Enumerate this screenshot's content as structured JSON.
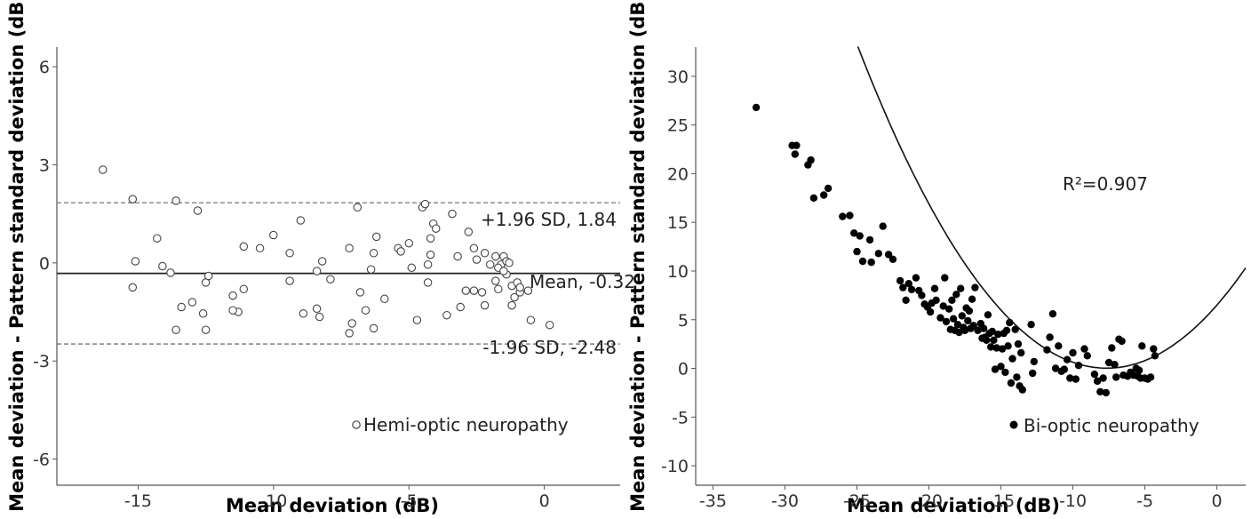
{
  "chart_data": [
    {
      "type": "scatter",
      "title": "",
      "xlabel": "Mean deviation (dB)",
      "ylabel": "- Mean deviation - Pattern standard deviation (dB)",
      "xlim": [
        -18,
        2.8
      ],
      "ylim": [
        -6.8,
        6.6
      ],
      "xticks": [
        -15,
        -10,
        -5,
        0
      ],
      "xtick_labels": [
        "-15",
        "-10",
        "-5",
        "0"
      ],
      "yticks": [
        6,
        3,
        0,
        -3,
        -6
      ],
      "ytick_labels": [
        "6",
        "3",
        "0",
        "-3",
        "-6"
      ],
      "grid": false,
      "legend": "Hemi-optic neuropathy",
      "legend_position": "bottom-right",
      "marker": "open-circle",
      "lines": [
        {
          "kind": "mean",
          "y": -0.32,
          "style": "solid",
          "label": "Mean, -0.32"
        },
        {
          "kind": "upper",
          "y": 1.84,
          "style": "dashed",
          "label": "+1.96 SD, 1.84"
        },
        {
          "kind": "lower",
          "y": -2.48,
          "style": "dashed",
          "label": "-1.96 SD, -2.48"
        }
      ],
      "points": [
        [
          -16.3,
          2.85
        ],
        [
          -15.2,
          1.95
        ],
        [
          -15.1,
          0.05
        ],
        [
          -15.2,
          -0.75
        ],
        [
          -14.3,
          0.75
        ],
        [
          -14.1,
          -0.1
        ],
        [
          -13.8,
          -0.3
        ],
        [
          -13.6,
          1.9
        ],
        [
          -13.6,
          -2.05
        ],
        [
          -13.4,
          -1.35
        ],
        [
          -13.0,
          -1.2
        ],
        [
          -12.8,
          1.6
        ],
        [
          -12.6,
          -1.55
        ],
        [
          -12.5,
          -0.6
        ],
        [
          -12.4,
          -0.4
        ],
        [
          -12.5,
          -2.05
        ],
        [
          -11.5,
          -1.0
        ],
        [
          -11.3,
          -1.5
        ],
        [
          -11.1,
          0.5
        ],
        [
          -11.1,
          -0.8
        ],
        [
          -11.5,
          -1.45
        ],
        [
          -10.5,
          0.45
        ],
        [
          -10.0,
          0.85
        ],
        [
          -9.4,
          0.3
        ],
        [
          -9.4,
          -0.55
        ],
        [
          -9.0,
          1.3
        ],
        [
          -8.9,
          -1.55
        ],
        [
          -8.4,
          -1.4
        ],
        [
          -8.4,
          -0.25
        ],
        [
          -8.2,
          0.05
        ],
        [
          -8.3,
          -1.65
        ],
        [
          -7.9,
          -0.5
        ],
        [
          -7.2,
          0.45
        ],
        [
          -7.1,
          -1.85
        ],
        [
          -7.2,
          -2.15
        ],
        [
          -6.9,
          1.7
        ],
        [
          -6.8,
          -0.9
        ],
        [
          -6.6,
          -1.45
        ],
        [
          -6.4,
          -0.2
        ],
        [
          -6.3,
          0.3
        ],
        [
          -6.2,
          0.8
        ],
        [
          -6.3,
          -2.0
        ],
        [
          -5.9,
          -1.1
        ],
        [
          -5.4,
          0.45
        ],
        [
          -5.3,
          0.35
        ],
        [
          -5.0,
          0.6
        ],
        [
          -4.9,
          -0.15
        ],
        [
          -4.7,
          -1.75
        ],
        [
          -4.5,
          1.7
        ],
        [
          -4.3,
          -0.6
        ],
        [
          -4.3,
          -0.05
        ],
        [
          -4.2,
          0.25
        ],
        [
          -4.2,
          0.75
        ],
        [
          -4.1,
          1.2
        ],
        [
          -4.0,
          1.05
        ],
        [
          -3.6,
          -1.6
        ],
        [
          -3.4,
          1.5
        ],
        [
          -3.2,
          0.2
        ],
        [
          -3.1,
          -1.35
        ],
        [
          -2.9,
          -0.85
        ],
        [
          -2.8,
          0.95
        ],
        [
          -2.6,
          0.45
        ],
        [
          -2.5,
          0.1
        ],
        [
          -2.3,
          -0.9
        ],
        [
          -2.2,
          0.3
        ],
        [
          -2.2,
          -1.3
        ],
        [
          -2.0,
          -0.05
        ],
        [
          -1.8,
          0.2
        ],
        [
          -1.8,
          -0.55
        ],
        [
          -1.7,
          -0.8
        ],
        [
          -1.6,
          -0.05
        ],
        [
          -1.5,
          0.2
        ],
        [
          -1.4,
          0.05
        ],
        [
          -1.4,
          -0.35
        ],
        [
          -1.3,
          0.0
        ],
        [
          -1.2,
          -1.3
        ],
        [
          -1.2,
          -0.7
        ],
        [
          -1.1,
          -1.05
        ],
        [
          -1.0,
          -0.6
        ],
        [
          -0.9,
          -0.9
        ],
        [
          -1.7,
          -0.15
        ],
        [
          -1.5,
          -0.25
        ],
        [
          -0.5,
          -1.75
        ],
        [
          0.2,
          -1.9
        ],
        [
          -0.6,
          -0.85
        ],
        [
          -0.9,
          -0.75
        ],
        [
          -2.6,
          -0.85
        ],
        [
          -4.4,
          1.8
        ]
      ]
    },
    {
      "type": "scatter",
      "title": "",
      "xlabel": "Mean deviation (dB)",
      "ylabel": "- Mean deviation - Pattern standard deviation (dB)",
      "xlim": [
        -36.2,
        2
      ],
      "ylim": [
        -12,
        33
      ],
      "xticks": [
        -35,
        -30,
        -25,
        -20,
        -15,
        -10,
        -5,
        0
      ],
      "xtick_labels": [
        "-35",
        "-30",
        "-25",
        "-20",
        "-15",
        "-10",
        "-5",
        "0"
      ],
      "yticks": [
        30,
        25,
        20,
        15,
        10,
        5,
        0,
        -5,
        -10
      ],
      "ytick_labels": [
        "30",
        "25",
        "20",
        "15",
        "10",
        "5",
        "0",
        "-5",
        "-10"
      ],
      "grid": false,
      "legend": "Bi-optic neuropathy",
      "legend_position": "bottom-right",
      "marker": "filled-circle",
      "annotation": "R²=0.907",
      "fit": {
        "type": "quadratic",
        "coefficients": [
          0.1106,
          1.6925,
          6.5
        ]
      },
      "points": [
        [
          -32.0,
          26.8
        ],
        [
          -29.5,
          22.9
        ],
        [
          -29.3,
          22.0
        ],
        [
          -29.2,
          22.9
        ],
        [
          -28.4,
          20.9
        ],
        [
          -28.2,
          21.4
        ],
        [
          -28.0,
          17.5
        ],
        [
          -27.3,
          17.8
        ],
        [
          -27.0,
          18.5
        ],
        [
          -26.0,
          15.6
        ],
        [
          -25.5,
          15.7
        ],
        [
          -25.2,
          13.9
        ],
        [
          -25.0,
          12.0
        ],
        [
          -24.8,
          13.6
        ],
        [
          -24.6,
          11.0
        ],
        [
          -24.1,
          13.2
        ],
        [
          -24.0,
          10.9
        ],
        [
          -23.5,
          11.8
        ],
        [
          -23.2,
          14.6
        ],
        [
          -22.8,
          11.7
        ],
        [
          -22.5,
          11.2
        ],
        [
          -22.0,
          9.0
        ],
        [
          -21.8,
          8.3
        ],
        [
          -21.6,
          7.0
        ],
        [
          -21.4,
          8.7
        ],
        [
          -21.2,
          8.1
        ],
        [
          -20.9,
          9.3
        ],
        [
          -20.7,
          8.0
        ],
        [
          -20.5,
          7.5
        ],
        [
          -20.3,
          6.6
        ],
        [
          -20.1,
          6.3
        ],
        [
          -19.9,
          5.8
        ],
        [
          -19.8,
          6.7
        ],
        [
          -19.6,
          8.2
        ],
        [
          -19.5,
          7.0
        ],
        [
          -19.2,
          5.2
        ],
        [
          -19.0,
          6.4
        ],
        [
          -18.9,
          9.3
        ],
        [
          -18.8,
          4.8
        ],
        [
          -18.6,
          6.1
        ],
        [
          -18.5,
          4.0
        ],
        [
          -18.4,
          7.0
        ],
        [
          -18.3,
          5.1
        ],
        [
          -18.2,
          3.9
        ],
        [
          -18.1,
          7.6
        ],
        [
          -18.0,
          4.5
        ],
        [
          -17.9,
          3.7
        ],
        [
          -17.8,
          8.2
        ],
        [
          -17.7,
          5.4
        ],
        [
          -17.6,
          4.2
        ],
        [
          -17.5,
          3.9
        ],
        [
          -17.4,
          6.2
        ],
        [
          -17.3,
          4.9
        ],
        [
          -17.2,
          5.9
        ],
        [
          -17.1,
          4.1
        ],
        [
          -17.0,
          7.1
        ],
        [
          -16.9,
          4.4
        ],
        [
          -16.8,
          8.3
        ],
        [
          -16.6,
          3.9
        ],
        [
          -16.4,
          4.6
        ],
        [
          -16.3,
          3.1
        ],
        [
          -16.2,
          4.1
        ],
        [
          -16.0,
          2.9
        ],
        [
          -15.9,
          5.5
        ],
        [
          -15.8,
          3.6
        ],
        [
          -15.7,
          2.2
        ],
        [
          -15.6,
          3.8
        ],
        [
          -15.5,
          2.9
        ],
        [
          -15.4,
          -0.1
        ],
        [
          -15.3,
          2.1
        ],
        [
          -15.2,
          3.5
        ],
        [
          -15.0,
          0.2
        ],
        [
          -14.9,
          2.0
        ],
        [
          -14.8,
          3.6
        ],
        [
          -14.7,
          -0.4
        ],
        [
          -14.6,
          3.9
        ],
        [
          -14.5,
          2.3
        ],
        [
          -14.4,
          4.7
        ],
        [
          -14.3,
          -1.5
        ],
        [
          -14.2,
          1.0
        ],
        [
          -14.0,
          4.0
        ],
        [
          -13.9,
          -0.9
        ],
        [
          -13.8,
          2.5
        ],
        [
          -13.7,
          -1.8
        ],
        [
          -13.6,
          1.6
        ],
        [
          -13.5,
          -2.2
        ],
        [
          -12.9,
          4.5
        ],
        [
          -12.8,
          -0.5
        ],
        [
          -12.7,
          0.7
        ],
        [
          -11.8,
          1.9
        ],
        [
          -11.6,
          3.2
        ],
        [
          -11.4,
          5.6
        ],
        [
          -11.2,
          0.0
        ],
        [
          -11.0,
          2.3
        ],
        [
          -10.8,
          -0.3
        ],
        [
          -10.6,
          -0.1
        ],
        [
          -10.4,
          0.9
        ],
        [
          -10.2,
          -1.0
        ],
        [
          -10.0,
          1.6
        ],
        [
          -9.8,
          -1.1
        ],
        [
          -9.6,
          0.3
        ],
        [
          -9.2,
          2.0
        ],
        [
          -9.0,
          1.3
        ],
        [
          -8.5,
          -0.6
        ],
        [
          -8.3,
          -1.3
        ],
        [
          -8.1,
          -2.4
        ],
        [
          -7.9,
          -1.0
        ],
        [
          -7.7,
          -2.5
        ],
        [
          -7.5,
          0.6
        ],
        [
          -7.3,
          2.1
        ],
        [
          -7.1,
          0.4
        ],
        [
          -6.8,
          3.0
        ],
        [
          -6.6,
          2.8
        ],
        [
          -6.5,
          -0.7
        ],
        [
          -6.2,
          -0.8
        ],
        [
          -6.0,
          -0.4
        ],
        [
          -5.8,
          -0.7
        ],
        [
          -5.6,
          0.0
        ],
        [
          -5.5,
          -0.8
        ],
        [
          -5.4,
          -0.2
        ],
        [
          -5.2,
          2.3
        ],
        [
          -5.0,
          -1.0
        ],
        [
          -4.8,
          -1.1
        ],
        [
          -4.6,
          -0.9
        ],
        [
          -4.4,
          2.0
        ],
        [
          -4.3,
          1.3
        ],
        [
          -8.3,
          -1.3
        ],
        [
          -5.3,
          -1.0
        ],
        [
          -7.0,
          -0.9
        ],
        [
          -16.1,
          3.2
        ]
      ]
    }
  ]
}
